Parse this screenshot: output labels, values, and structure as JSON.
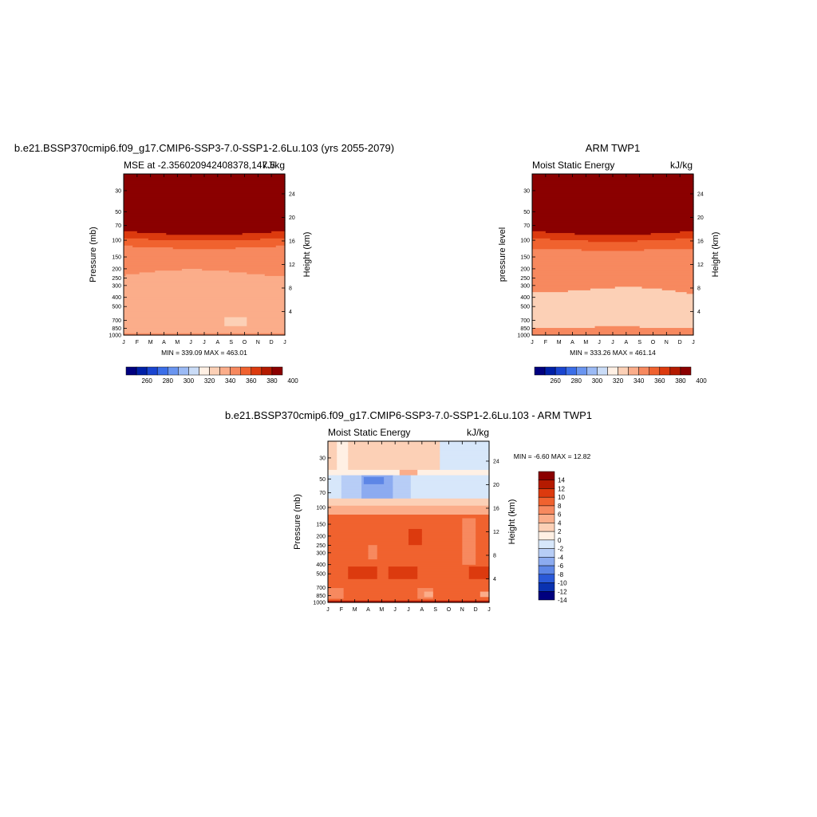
{
  "figure_title_left": "b.e21.BSSP370cmip6.f09_g17.CMIP6-SSP3-7.0-SSP1-2.6Lu.103 (yrs 2055-2079)",
  "figure_title_right": "ARM TWP1",
  "figure_title_diff": "b.e21.BSSP370cmip6.f09_g17.CMIP6-SSP3-7.0-SSP1-2.6Lu.103 - ARM TWP1",
  "chart_data": [
    {
      "id": "model",
      "type": "heatmap",
      "subtitle_left": "MSE at -2.356020942408378,147.5",
      "subtitle_right": "kJ/kg",
      "ylabel": "Pressure (mb)",
      "ylabel_right": "Height (km)",
      "x_ticks": [
        "J",
        "F",
        "M",
        "A",
        "M",
        "J",
        "J",
        "A",
        "S",
        "O",
        "N",
        "D",
        "J"
      ],
      "y_ticks": [
        "30",
        "50",
        "70",
        "100",
        "150",
        "200",
        "250",
        "300",
        "400",
        "500",
        "700",
        "850",
        "1000"
      ],
      "y_ticks_right": [
        "24",
        "20",
        "16",
        "12",
        "8",
        "4"
      ],
      "minmax": "MIN = 339.09 MAX = 463.01",
      "colorbar_labels": [
        "260",
        "280",
        "300",
        "320",
        "340",
        "360",
        "380",
        "400"
      ],
      "profile_base": [
        470,
        470,
        470,
        470,
        470,
        440,
        420,
        400,
        395,
        392,
        385,
        370,
        365,
        360,
        360,
        360,
        345,
        345,
        345,
        345,
        345,
        345,
        345,
        343,
        343,
        343,
        343,
        343,
        343,
        343,
        343,
        343,
        343,
        343,
        343,
        343,
        343,
        343,
        343,
        343,
        352
      ],
      "profile_anomaly": [
        0,
        0,
        0,
        0,
        0,
        0,
        0,
        2,
        0,
        0,
        0,
        0,
        0,
        0,
        0,
        0,
        0,
        0,
        0,
        0,
        0,
        0,
        0,
        0,
        0,
        0,
        0,
        0,
        0,
        0,
        0,
        0,
        0,
        0,
        0,
        0,
        0,
        0,
        0,
        0,
        0
      ]
    },
    {
      "id": "obs",
      "type": "heatmap",
      "subtitle_left": "Moist Static Energy",
      "subtitle_right": "kJ/kg",
      "ylabel": "pressure level",
      "ylabel_right": "Height (km)",
      "x_ticks": [
        "J",
        "F",
        "M",
        "A",
        "M",
        "J",
        "J",
        "A",
        "S",
        "O",
        "N",
        "D",
        "J"
      ],
      "y_ticks": [
        "30",
        "50",
        "70",
        "100",
        "150",
        "200",
        "250",
        "300",
        "400",
        "500",
        "700",
        "850",
        "1000"
      ],
      "y_ticks_right": [
        "24",
        "20",
        "16",
        "12",
        "8",
        "4"
      ],
      "minmax": "MIN = 333.26 MAX = 461.14",
      "colorbar_labels": [
        "260",
        "280",
        "300",
        "320",
        "340",
        "360",
        "380",
        "400"
      ]
    },
    {
      "id": "difference",
      "type": "heatmap",
      "subtitle_left": "Moist Static Energy",
      "subtitle_right": "kJ/kg",
      "ylabel": "Pressure (mb)",
      "ylabel_right": "Height (km)",
      "x_ticks": [
        "J",
        "F",
        "M",
        "A",
        "M",
        "J",
        "J",
        "A",
        "S",
        "O",
        "N",
        "D",
        "J"
      ],
      "y_ticks": [
        "30",
        "50",
        "70",
        "100",
        "150",
        "200",
        "250",
        "300",
        "400",
        "500",
        "700",
        "850",
        "1000"
      ],
      "y_ticks_right": [
        "24",
        "20",
        "16",
        "12",
        "8",
        "4"
      ],
      "minmax": "MIN =  -6.60 MAX =  12.82",
      "colorbar_labels": [
        "14",
        "12",
        "10",
        "8",
        "6",
        "4",
        "2",
        "0",
        "-2",
        "-4",
        "-6",
        "-8",
        "-10",
        "-12",
        "-14"
      ]
    }
  ],
  "colors": {
    "abs_scale": [
      "#00007f",
      "#0020a8",
      "#1a45d0",
      "#3b6ee8",
      "#6a95f0",
      "#9bbaf5",
      "#cadcf7",
      "#fff0e4",
      "#fcd0b6",
      "#fbad8a",
      "#f7895f",
      "#f0622f",
      "#dc3a0e",
      "#b41a00",
      "#8b0000"
    ],
    "diff_scale": [
      "#8b0000",
      "#b41a00",
      "#dc3a0e",
      "#f0622f",
      "#f7895f",
      "#fbad8a",
      "#fcd0b6",
      "#fff0e4",
      "#d7e7fa",
      "#b7cdf6",
      "#8cabf0",
      "#5d86e6",
      "#2a59d8",
      "#0a32b0",
      "#00007f"
    ]
  }
}
